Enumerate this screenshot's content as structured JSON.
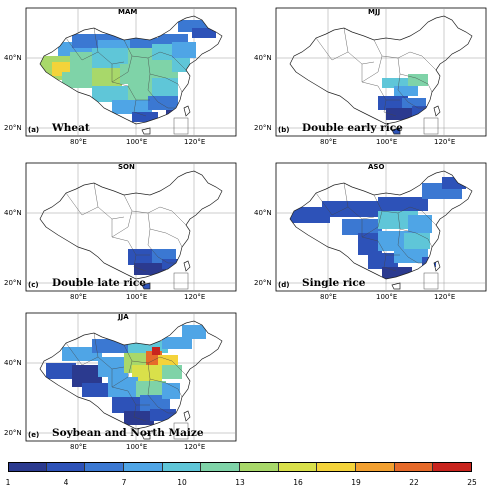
{
  "panels": [
    {
      "id": "a",
      "letter": "(a)",
      "season": "MAM",
      "crop": "Wheat"
    },
    {
      "id": "b",
      "letter": "(b)",
      "season": "MJJ",
      "crop": "Double early rice"
    },
    {
      "id": "c",
      "letter": "(c)",
      "season": "SON",
      "crop": "Double late  rice"
    },
    {
      "id": "d",
      "letter": "(d)",
      "season": "ASO",
      "crop": "Single rice"
    },
    {
      "id": "e",
      "letter": "(e)",
      "season": "JJA",
      "crop": "Soybean and North Maize"
    }
  ],
  "lat_labels": [
    "40°N",
    "20°N"
  ],
  "lon_labels": [
    "80°E",
    "100°E",
    "120°E"
  ],
  "colorbar": {
    "ticks": [
      "1",
      "4",
      "7",
      "10",
      "13",
      "16",
      "19",
      "22",
      "25"
    ],
    "colors": [
      "#2b3a8f",
      "#2d52b8",
      "#3b78d2",
      "#4fa5e6",
      "#5fc6d8",
      "#7fd3a8",
      "#a8d86a",
      "#d9e04a",
      "#f4d33a",
      "#f2a030",
      "#e66a2a",
      "#c8241e"
    ]
  }
}
